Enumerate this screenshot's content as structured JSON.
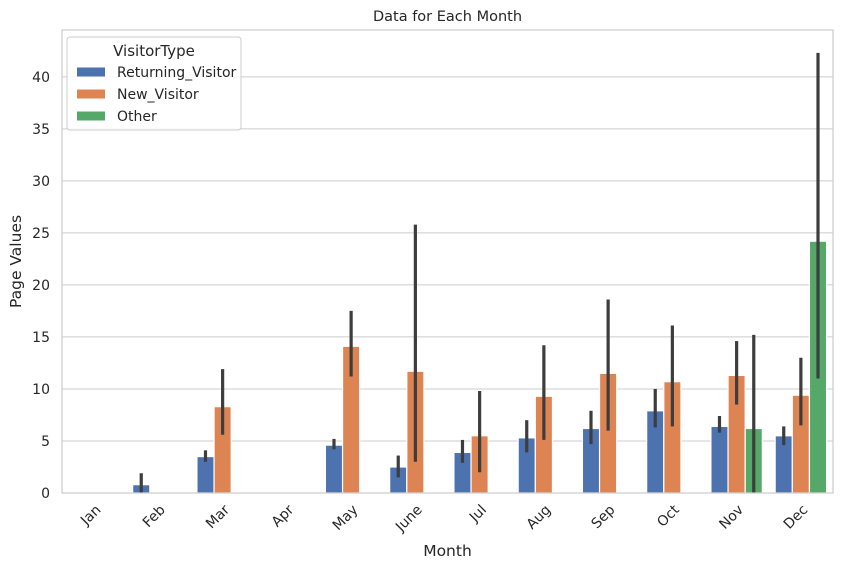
{
  "chart_data": {
    "type": "bar",
    "title": "Data for Each Month",
    "xlabel": "Month",
    "ylabel": "Page Values",
    "ylim": [
      0,
      44.5
    ],
    "yticks": [
      0,
      5,
      10,
      15,
      20,
      25,
      30,
      35,
      40
    ],
    "ytick_labels": [
      "0",
      "5",
      "10",
      "15",
      "20",
      "25",
      "30",
      "35",
      "40"
    ],
    "grid": "horizontal",
    "legend_position": "top-left",
    "legend_title": "VisitorType",
    "categories": [
      "Jan",
      "Feb",
      "Mar",
      "Apr",
      "May",
      "June",
      "Jul",
      "Aug",
      "Sep",
      "Oct",
      "Nov",
      "Dec"
    ],
    "series": [
      {
        "name": "Returning_Visitor",
        "color": "#4c72b0",
        "values": [
          null,
          0.8,
          3.5,
          null,
          4.6,
          2.5,
          3.9,
          5.3,
          6.2,
          7.9,
          6.4,
          5.5
        ],
        "ci_low": [
          null,
          0.0,
          3.0,
          null,
          4.2,
          1.5,
          2.9,
          3.9,
          4.7,
          6.3,
          5.8,
          4.6
        ],
        "ci_high": [
          null,
          1.9,
          4.1,
          null,
          5.2,
          3.6,
          5.1,
          7.0,
          7.9,
          10.0,
          7.4,
          6.4
        ]
      },
      {
        "name": "New_Visitor",
        "color": "#dd8452",
        "values": [
          null,
          null,
          8.3,
          null,
          14.1,
          11.7,
          5.5,
          9.3,
          11.5,
          10.7,
          11.3,
          9.4
        ],
        "ci_low": [
          null,
          null,
          5.6,
          null,
          11.2,
          3.0,
          2.0,
          5.1,
          6.0,
          6.4,
          8.5,
          6.5
        ],
        "ci_high": [
          null,
          null,
          11.9,
          null,
          17.5,
          25.8,
          9.8,
          14.2,
          18.6,
          16.1,
          14.6,
          13.0
        ]
      },
      {
        "name": "Other",
        "color": "#55a868",
        "values": [
          null,
          null,
          null,
          null,
          null,
          null,
          null,
          null,
          null,
          null,
          6.2,
          24.2
        ],
        "ci_low": [
          null,
          null,
          null,
          null,
          null,
          null,
          null,
          null,
          null,
          null,
          0.0,
          11.0
        ],
        "ci_high": [
          null,
          null,
          null,
          null,
          null,
          null,
          null,
          null,
          null,
          null,
          15.2,
          42.3
        ]
      }
    ]
  }
}
